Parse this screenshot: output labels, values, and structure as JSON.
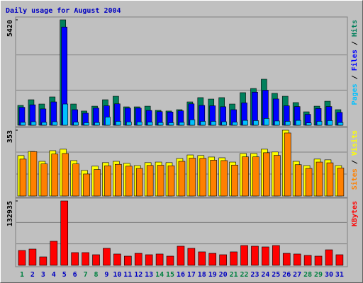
{
  "chart_data": {
    "type": "bar",
    "title": "Daily usage for August 2004",
    "legend_separator": " / ",
    "categories": [
      "1",
      "2",
      "3",
      "4",
      "5",
      "6",
      "7",
      "8",
      "9",
      "10",
      "11",
      "12",
      "13",
      "14",
      "15",
      "16",
      "17",
      "18",
      "19",
      "20",
      "21",
      "22",
      "23",
      "24",
      "25",
      "26",
      "27",
      "28",
      "29",
      "30",
      "31"
    ],
    "category_colors": [
      "#008040",
      "#0000c0",
      "#0000c0",
      "#0000c0",
      "#0000c0",
      "#0000c0",
      "#008040",
      "#008040",
      "#0000c0",
      "#0000c0",
      "#0000c0",
      "#0000c0",
      "#0000c0",
      "#008040",
      "#008040",
      "#0000c0",
      "#0000c0",
      "#0000c0",
      "#0000c0",
      "#0000c0",
      "#008040",
      "#008040",
      "#0000c0",
      "#0000c0",
      "#0000c0",
      "#0000c0",
      "#0000c0",
      "#008040",
      "#008040",
      "#0000c0",
      "#0000c0"
    ],
    "panels": [
      {
        "ylim": [
          0,
          5420
        ],
        "yticks": [
          5420
        ],
        "series": [
          {
            "name": "Hits",
            "color": "#00805c",
            "values": [
              1020,
              1310,
              1090,
              1455,
              5420,
              1090,
              730,
              980,
              1310,
              1490,
              945,
              945,
              980,
              765,
              730,
              800,
              1200,
              1420,
              1345,
              1420,
              1090,
              1675,
              1890,
              2365,
              1640,
              1490,
              1165,
              690,
              980,
              1235,
              800
            ]
          },
          {
            "name": "Files",
            "color": "#0000ff",
            "values": [
              920,
              1050,
              840,
              1200,
              5050,
              800,
              620,
              880,
              1000,
              1100,
              880,
              880,
              760,
              700,
              680,
              740,
              1100,
              1020,
              1000,
              950,
              800,
              1150,
              1700,
              1800,
              1350,
              1000,
              960,
              560,
              860,
              960,
              660
            ]
          },
          {
            "name": "Pages",
            "color": "#00c0ff",
            "values": [
              150,
              180,
              150,
              180,
              1090,
              160,
              130,
              140,
              420,
              200,
              170,
              170,
              160,
              140,
              130,
              150,
              280,
              200,
              200,
              180,
              160,
              250,
              240,
              350,
              220,
              200,
              250,
              120,
              200,
              240,
              140
            ]
          }
        ]
      },
      {
        "ylim": [
          0,
          353
        ],
        "yticks": [
          353
        ],
        "series": [
          {
            "name": "Visits",
            "color": "#ffff00",
            "values": [
              217,
              239,
              186,
              243,
              251,
              190,
              137,
              160,
              179,
              186,
              175,
              163,
              179,
              182,
              179,
              201,
              220,
              217,
              209,
              205,
              182,
              228,
              228,
              251,
              236,
              353,
              186,
              163,
              198,
              194,
              163
            ]
          },
          {
            "name": "Sites",
            "color": "#ff8000",
            "values": [
              198,
              238,
              172,
              225,
              228,
              172,
              118,
              142,
              162,
              170,
              160,
              148,
              164,
              165,
              162,
              186,
              203,
              202,
              192,
              190,
              166,
              210,
              210,
              232,
              218,
              338,
              168,
              148,
              182,
              178,
              150
            ]
          }
        ]
      },
      {
        "ylim": [
          0,
          132935
        ],
        "yticks": [
          132935
        ],
        "series": [
          {
            "name": "KBytes",
            "color": "#ff0000",
            "values": [
              30700,
              33600,
              17500,
              49700,
              132935,
              26300,
              26300,
              21900,
              35100,
              23400,
              19000,
              24800,
              21900,
              23400,
              19000,
              39500,
              35100,
              27800,
              24800,
              21900,
              27800,
              40900,
              39500,
              38000,
              40900,
              24800,
              23400,
              20500,
              19000,
              32100,
              21900
            ]
          }
        ]
      }
    ]
  }
}
